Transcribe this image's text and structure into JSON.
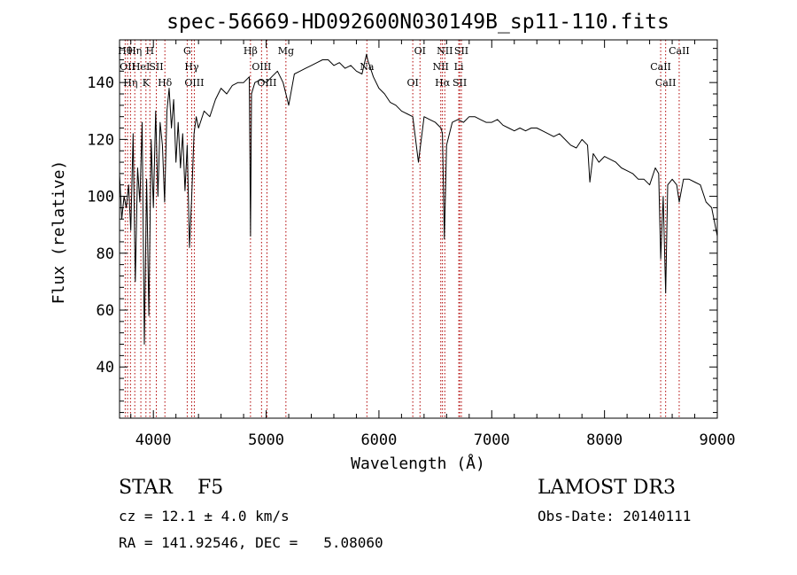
{
  "chart_data": {
    "type": "line",
    "title": "spec-56669-HD092600N030149B_sp11-110.fits",
    "xlabel": "Wavelength (Å)",
    "ylabel": "Flux (relative)",
    "xlim": [
      3700,
      9000
    ],
    "ylim": [
      22,
      155
    ],
    "x_ticks": [
      4000,
      5000,
      6000,
      7000,
      8000,
      9000
    ],
    "x_tick_labels": [
      "4000",
      "5000",
      "6000",
      "7000",
      "8000",
      "9000"
    ],
    "y_ticks": [
      40,
      60,
      80,
      100,
      120,
      140
    ],
    "y_tick_labels": [
      "40",
      "60",
      "80",
      "100",
      "120",
      "140"
    ],
    "grid": false,
    "line_color": "#000000",
    "marker_color": "#b00000",
    "series": [
      {
        "x": [
          3700,
          3720,
          3740,
          3760,
          3780,
          3800,
          3820,
          3840,
          3860,
          3880,
          3900,
          3920,
          3940,
          3960,
          3980,
          4000,
          4020,
          4040,
          4060,
          4080,
          4100,
          4120,
          4140,
          4160,
          4180,
          4200,
          4220,
          4240,
          4260,
          4280,
          4300,
          4320,
          4340,
          4360,
          4380,
          4400,
          4450,
          4500,
          4550,
          4600,
          4650,
          4700,
          4750,
          4800,
          4850,
          4861,
          4870,
          4900,
          4950,
          5000,
          5050,
          5100,
          5150,
          5200,
          5250,
          5300,
          5350,
          5400,
          5450,
          5500,
          5550,
          5600,
          5650,
          5700,
          5750,
          5800,
          5850,
          5890,
          5900,
          5950,
          6000,
          6050,
          6100,
          6150,
          6200,
          6250,
          6300,
          6350,
          6400,
          6450,
          6500,
          6550,
          6563,
          6580,
          6600,
          6650,
          6700,
          6750,
          6800,
          6850,
          6900,
          6950,
          7000,
          7050,
          7100,
          7150,
          7200,
          7250,
          7300,
          7350,
          7400,
          7450,
          7500,
          7550,
          7600,
          7650,
          7700,
          7750,
          7800,
          7850,
          7870,
          7900,
          7950,
          8000,
          8050,
          8100,
          8150,
          8200,
          8250,
          8300,
          8350,
          8400,
          8450,
          8480,
          8498,
          8520,
          8542,
          8560,
          8600,
          8640,
          8662,
          8700,
          8750,
          8800,
          8850,
          8900,
          8950,
          9000
        ],
        "values": [
          108,
          92,
          100,
          96,
          104,
          88,
          122,
          70,
          110,
          98,
          126,
          48,
          106,
          58,
          120,
          96,
          130,
          100,
          126,
          118,
          98,
          130,
          138,
          124,
          134,
          112,
          126,
          110,
          122,
          102,
          118,
          82,
          100,
          122,
          128,
          124,
          130,
          128,
          134,
          138,
          136,
          139,
          140,
          140,
          142,
          86,
          136,
          140,
          141,
          140,
          142,
          144,
          140,
          132,
          143,
          144,
          145,
          146,
          147,
          148,
          148,
          146,
          147,
          145,
          146,
          144,
          143,
          150,
          148,
          142,
          138,
          136,
          133,
          132,
          130,
          129,
          128,
          112,
          128,
          127,
          126,
          124,
          122,
          85,
          118,
          126,
          127,
          126,
          128,
          128,
          127,
          126,
          126,
          127,
          125,
          124,
          123,
          124,
          123,
          124,
          124,
          123,
          122,
          121,
          122,
          120,
          118,
          117,
          120,
          118,
          105,
          115,
          112,
          114,
          113,
          112,
          110,
          109,
          108,
          106,
          106,
          104,
          110,
          108,
          78,
          100,
          66,
          104,
          106,
          104,
          98,
          106,
          106,
          105,
          104,
          98,
          96,
          86
        ]
      }
    ],
    "lines": [
      {
        "x": 3750,
        "label": "Hθ"
      },
      {
        "x": 3771,
        "label": "OII"
      },
      {
        "x": 3797,
        "label": "Hη"
      },
      {
        "x": 3835,
        "label": "Hη"
      },
      {
        "x": 3889,
        "label": "HeI"
      },
      {
        "x": 3934,
        "label": "K"
      },
      {
        "x": 3969,
        "label": "H"
      },
      {
        "x": 4026,
        "label": "SII"
      },
      {
        "x": 4102,
        "label": "Hδ"
      },
      {
        "x": 4300,
        "label": "G"
      },
      {
        "x": 4340,
        "label": "Hγ"
      },
      {
        "x": 4363,
        "label": "OIII"
      },
      {
        "x": 4861,
        "label": "Hβ"
      },
      {
        "x": 4959,
        "label": "OIII"
      },
      {
        "x": 5007,
        "label": "OIII"
      },
      {
        "x": 5175,
        "label": "Mg"
      },
      {
        "x": 5893,
        "label": "Na"
      },
      {
        "x": 6300,
        "label": "OI"
      },
      {
        "x": 6364,
        "label": "OI"
      },
      {
        "x": 6548,
        "label": "NII"
      },
      {
        "x": 6563,
        "label": "Hα"
      },
      {
        "x": 6584,
        "label": "NII"
      },
      {
        "x": 6708,
        "label": "Li"
      },
      {
        "x": 6716,
        "label": "SII"
      },
      {
        "x": 6731,
        "label": "SII"
      },
      {
        "x": 8498,
        "label": "CaII"
      },
      {
        "x": 8542,
        "label": "CaII"
      },
      {
        "x": 8662,
        "label": "CaII"
      }
    ]
  },
  "info": {
    "class_line": "STAR    F5",
    "survey": "LAMOST DR3",
    "cz": "cz = 12.1 ± 4.0 km/s",
    "obs_date": "Obs-Date: 20140111",
    "coords": "RA = 141.92546, DEC =   5.08060"
  }
}
